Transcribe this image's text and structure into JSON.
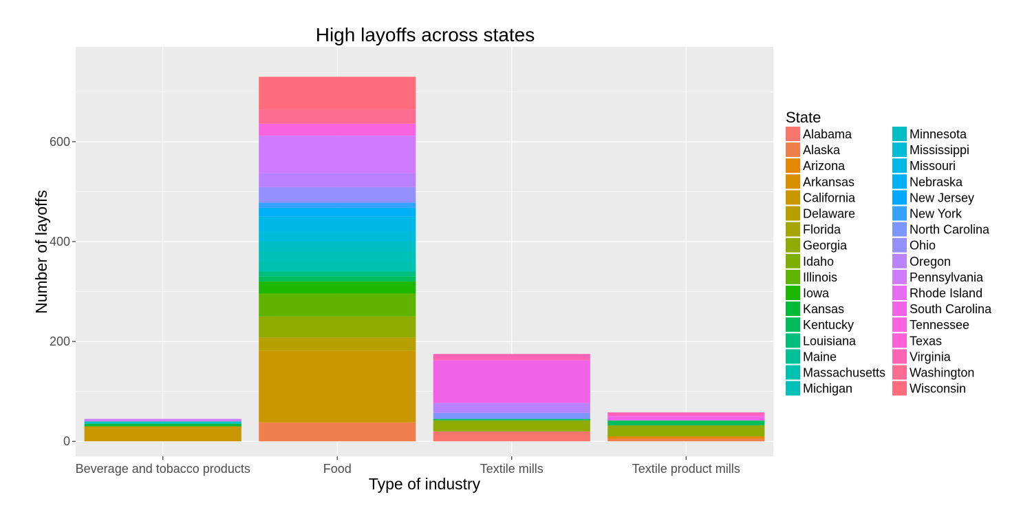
{
  "chart_data": {
    "type": "bar",
    "stacked": true,
    "title": "High layoffs across states",
    "xlabel": "Type of industry",
    "ylabel": "Number of layoffs",
    "ylim": [
      -30,
      790
    ],
    "yticks": [
      0,
      200,
      400,
      600
    ],
    "grid": true,
    "legend": {
      "title": "State",
      "placement": "right",
      "columns": 2
    },
    "categories": [
      "Beverage and tobacco products",
      "Food",
      "Textile mills",
      "Textile product mills"
    ],
    "series": [
      {
        "name": "Alabama",
        "color": "#F8766D",
        "values": [
          0,
          0,
          20,
          0
        ]
      },
      {
        "name": "Alaska",
        "color": "#F07F4E",
        "values": [
          0,
          38,
          0,
          5
        ]
      },
      {
        "name": "Arizona",
        "color": "#E58700",
        "values": [
          0,
          0,
          0,
          5
        ]
      },
      {
        "name": "Arkansas",
        "color": "#D89000",
        "values": [
          0,
          0,
          0,
          0
        ]
      },
      {
        "name": "California",
        "color": "#C99800",
        "values": [
          30,
          144,
          0,
          0
        ]
      },
      {
        "name": "Delaware",
        "color": "#B89F00",
        "values": [
          0,
          26,
          0,
          0
        ]
      },
      {
        "name": "Florida",
        "color": "#A5A600",
        "values": [
          0,
          0,
          0,
          0
        ]
      },
      {
        "name": "Georgia",
        "color": "#8FAA00",
        "values": [
          0,
          42,
          22,
          22
        ]
      },
      {
        "name": "Idaho",
        "color": "#7DAE00",
        "values": [
          0,
          0,
          0,
          0
        ]
      },
      {
        "name": "Illinois",
        "color": "#5FB400",
        "values": [
          0,
          46,
          0,
          0
        ]
      },
      {
        "name": "Iowa",
        "color": "#1DB700",
        "values": [
          0,
          24,
          0,
          0
        ]
      },
      {
        "name": "Kansas",
        "color": "#00BA38",
        "values": [
          5,
          0,
          0,
          0
        ]
      },
      {
        "name": "Kentucky",
        "color": "#00BD5C",
        "values": [
          0,
          10,
          3,
          10
        ]
      },
      {
        "name": "Louisiana",
        "color": "#00BF7C",
        "values": [
          0,
          10,
          0,
          0
        ]
      },
      {
        "name": "Maine",
        "color": "#00C097",
        "values": [
          0,
          0,
          0,
          0
        ]
      },
      {
        "name": "Massachusetts",
        "color": "#00C1AF",
        "values": [
          0,
          20,
          0,
          0
        ]
      },
      {
        "name": "Michigan",
        "color": "#00C0B8",
        "values": [
          5,
          20,
          0,
          0
        ]
      },
      {
        "name": "Minnesota",
        "color": "#00BFC4",
        "values": [
          0,
          20,
          0,
          0
        ]
      },
      {
        "name": "Mississippi",
        "color": "#00BCD8",
        "values": [
          0,
          20,
          0,
          0
        ]
      },
      {
        "name": "Missouri",
        "color": "#00B8E7",
        "values": [
          0,
          30,
          0,
          0
        ]
      },
      {
        "name": "Nebraska",
        "color": "#00B0F6",
        "values": [
          0,
          18,
          0,
          0
        ]
      },
      {
        "name": "New Jersey",
        "color": "#00A9FF",
        "values": [
          0,
          0,
          0,
          0
        ]
      },
      {
        "name": "New York",
        "color": "#35A2FF",
        "values": [
          0,
          10,
          0,
          0
        ]
      },
      {
        "name": "North Carolina",
        "color": "#7E96FF",
        "values": [
          0,
          0,
          12,
          0
        ]
      },
      {
        "name": "Ohio",
        "color": "#9590FF",
        "values": [
          0,
          31,
          0,
          0
        ]
      },
      {
        "name": "Oregon",
        "color": "#B983FF",
        "values": [
          0,
          28,
          20,
          0
        ]
      },
      {
        "name": "Pennsylvania",
        "color": "#CF7BFF",
        "values": [
          5,
          75,
          0,
          0
        ]
      },
      {
        "name": "Rhode Island",
        "color": "#E76BF3",
        "values": [
          0,
          0,
          0,
          0
        ]
      },
      {
        "name": "South Carolina",
        "color": "#F063E8",
        "values": [
          0,
          0,
          85,
          7
        ]
      },
      {
        "name": "Tennessee",
        "color": "#F863DF",
        "values": [
          0,
          24,
          0,
          3
        ]
      },
      {
        "name": "Texas",
        "color": "#FC61D5",
        "values": [
          0,
          0,
          0,
          0
        ]
      },
      {
        "name": "Virginia",
        "color": "#FF63B6",
        "values": [
          0,
          0,
          13,
          6
        ]
      },
      {
        "name": "Washington",
        "color": "#FF6C91",
        "values": [
          0,
          28,
          0,
          0
        ]
      },
      {
        "name": "Wisconsin",
        "color": "#FF6C7E",
        "values": [
          0,
          66,
          0,
          0
        ]
      }
    ]
  }
}
